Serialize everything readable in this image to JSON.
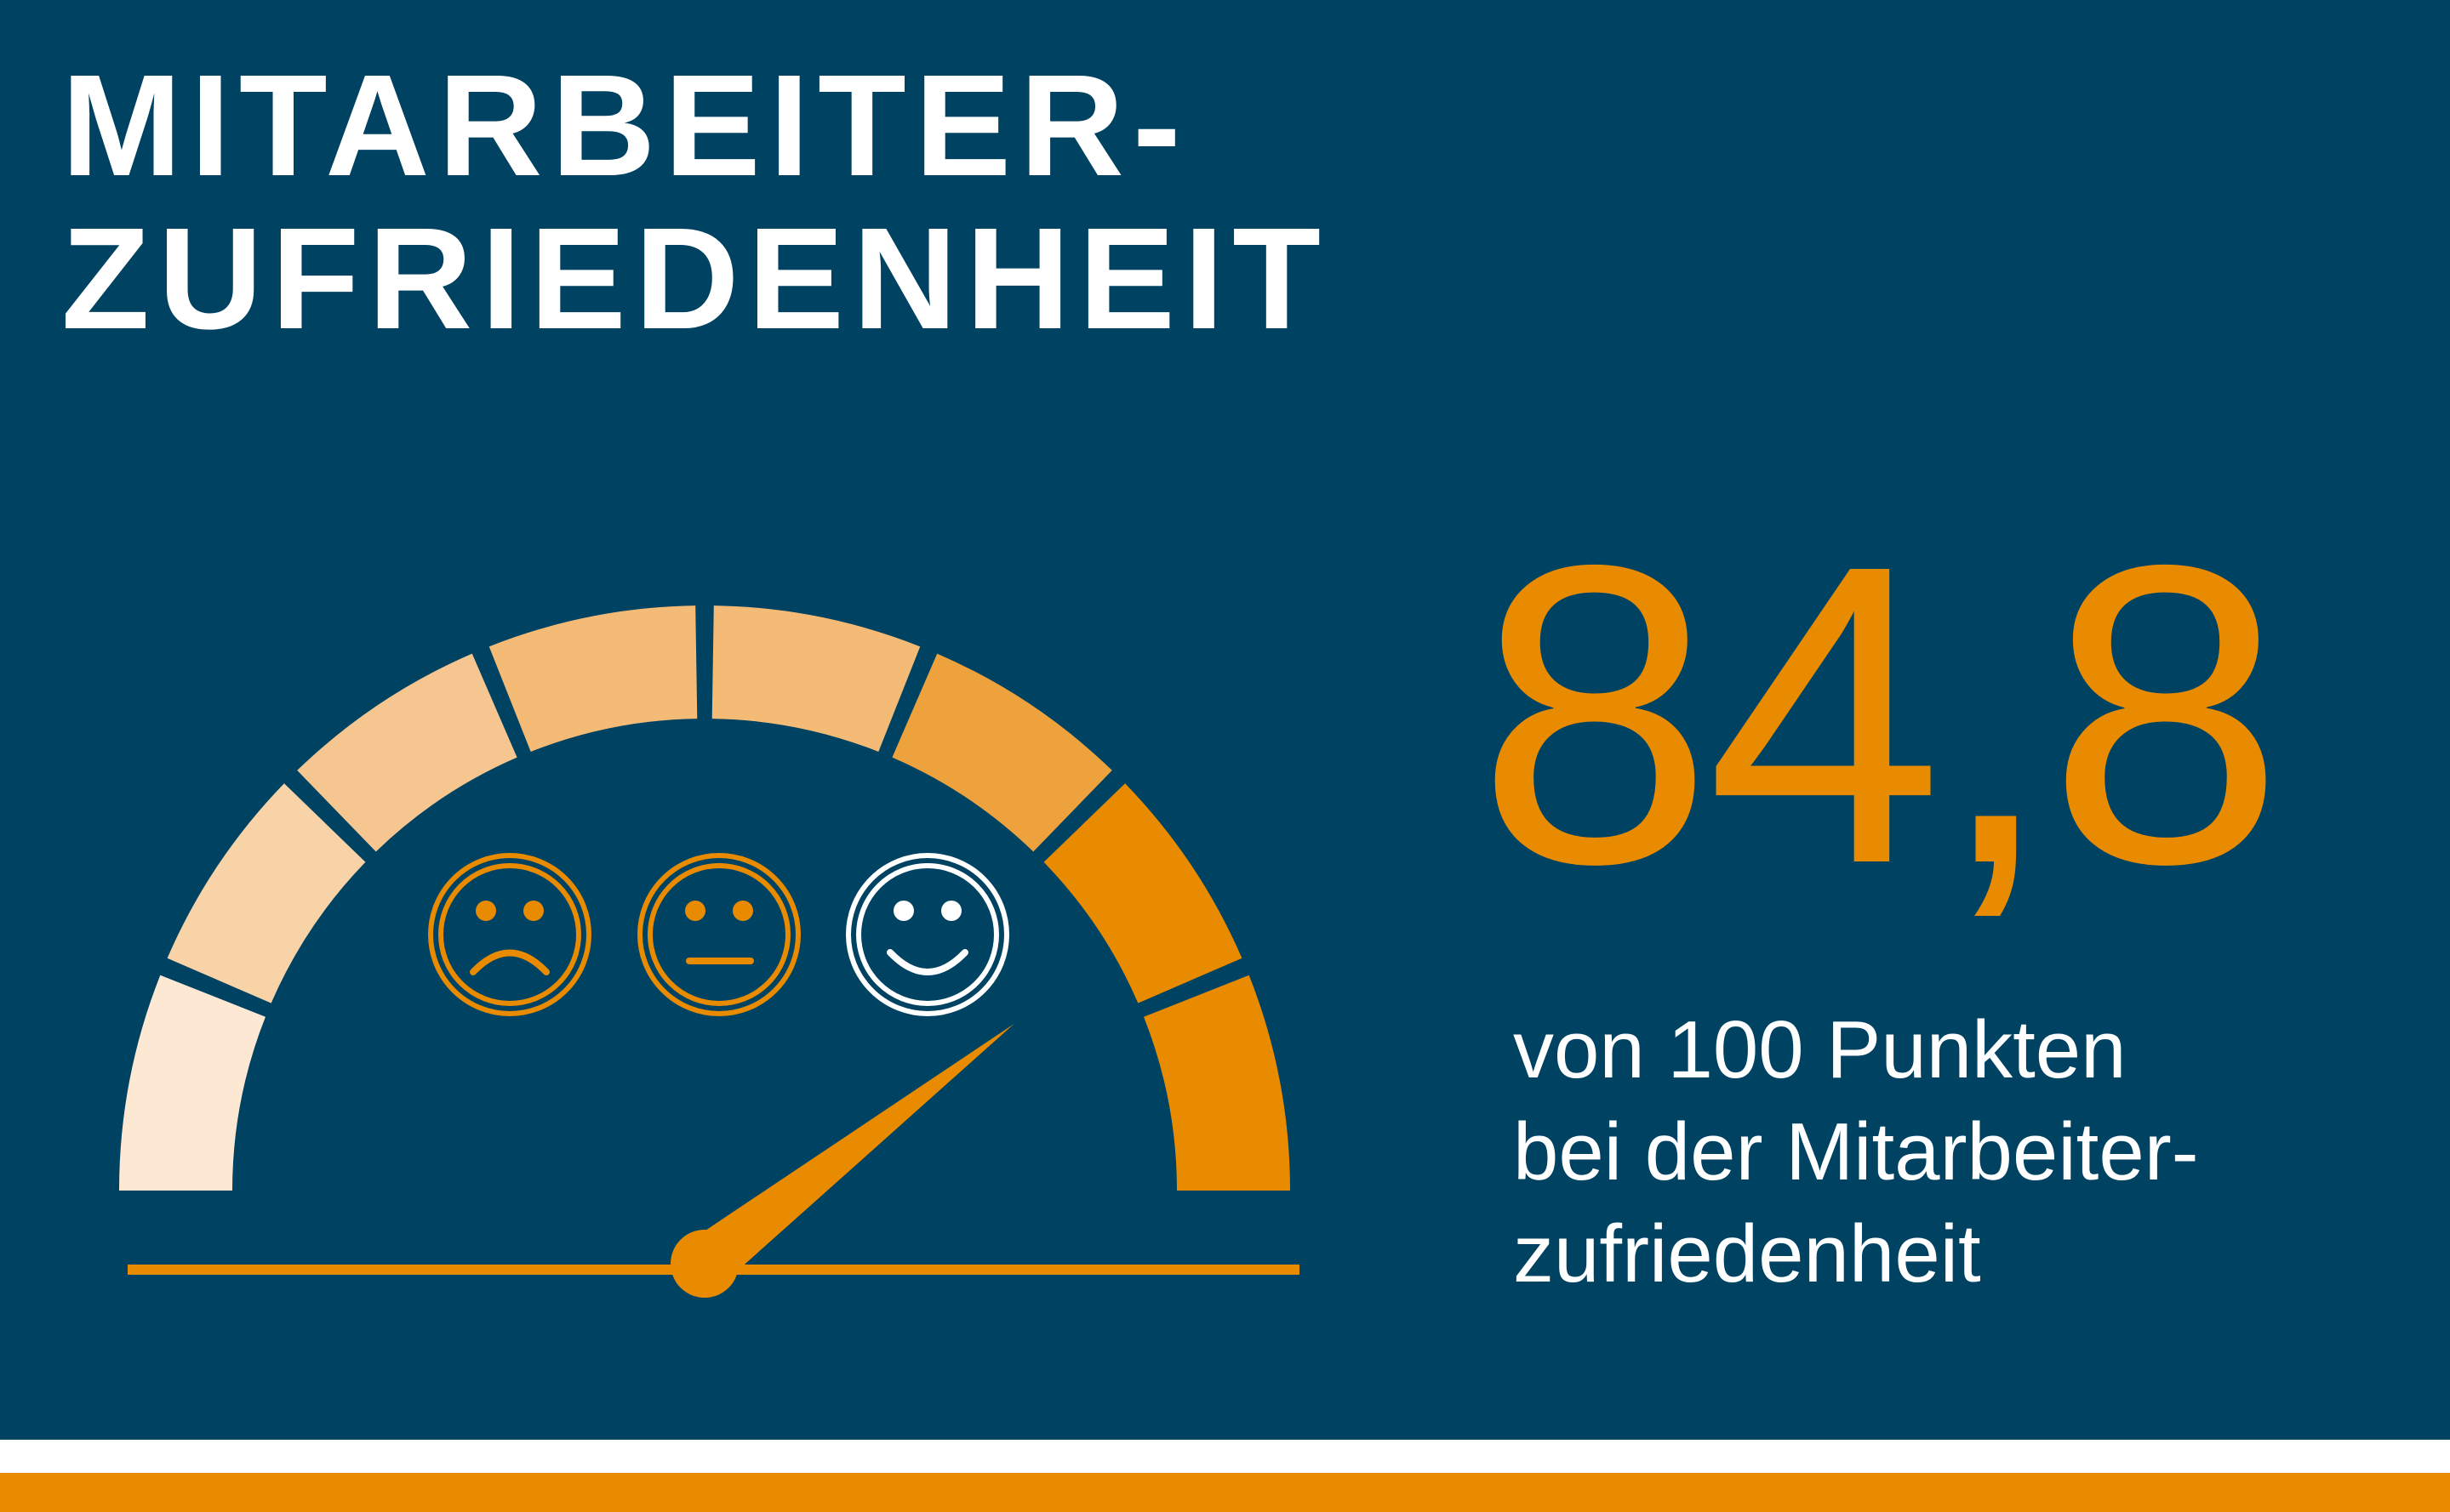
{
  "title": {
    "line1": "MITARBEITER-",
    "line2": "ZUFRIEDENHEIT"
  },
  "score": {
    "value": "84,8"
  },
  "description": {
    "line1": "von 100 Punkten",
    "line2": "bei der Mitarbeiter-",
    "line3": "zufriedenheit"
  },
  "gauge": {
    "segment_colors": [
      "#fde8d4",
      "#f8d3a7",
      "#f6c691",
      "#f4bb76",
      "#f4bb76",
      "#eea23e",
      "#e88b00",
      "#e88b00"
    ],
    "needle_level_fraction": 0.79,
    "faces": [
      {
        "icon": "sad-face-icon",
        "color": "#e88b00"
      },
      {
        "icon": "neutral-face-icon",
        "color": "#e88b00"
      },
      {
        "icon": "happy-face-icon",
        "color": "#ffffff"
      }
    ]
  },
  "colors": {
    "background": "#004262",
    "accent": "#e88b00",
    "text": "#ffffff"
  }
}
